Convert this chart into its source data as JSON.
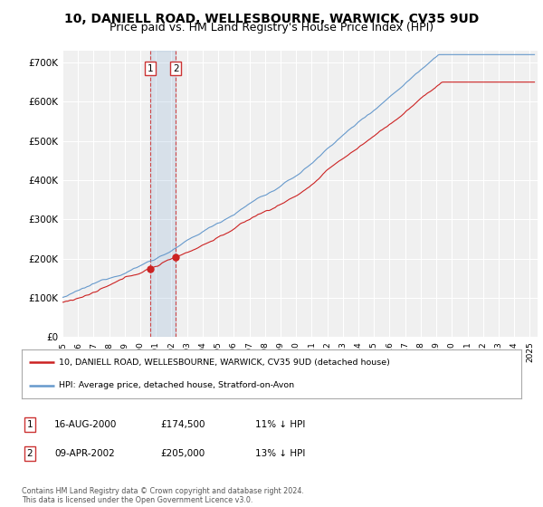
{
  "title": "10, DANIELL ROAD, WELLESBOURNE, WARWICK, CV35 9UD",
  "subtitle": "Price paid vs. HM Land Registry's House Price Index (HPI)",
  "ylabel_ticks": [
    "£0",
    "£100K",
    "£200K",
    "£300K",
    "£400K",
    "£500K",
    "£600K",
    "£700K"
  ],
  "ytick_vals": [
    0,
    100000,
    200000,
    300000,
    400000,
    500000,
    600000,
    700000
  ],
  "ylim": [
    0,
    730000
  ],
  "xlim_start": 1995.0,
  "xlim_end": 2025.5,
  "hpi_color": "#6699cc",
  "price_color": "#cc2222",
  "sale1_date": 2000.62,
  "sale1_price": 174500,
  "sale1_label": "1",
  "sale2_date": 2002.27,
  "sale2_price": 205000,
  "sale2_label": "2",
  "legend_line1": "10, DANIELL ROAD, WELLESBOURNE, WARWICK, CV35 9UD (detached house)",
  "legend_line2": "HPI: Average price, detached house, Stratford-on-Avon",
  "table_row1": [
    "1",
    "16-AUG-2000",
    "£174,500",
    "11% ↓ HPI"
  ],
  "table_row2": [
    "2",
    "09-APR-2002",
    "£205,000",
    "13% ↓ HPI"
  ],
  "footnote": "Contains HM Land Registry data © Crown copyright and database right 2024.\nThis data is licensed under the Open Government Licence v3.0.",
  "background_color": "#ffffff",
  "plot_bg_color": "#f0f0f0",
  "grid_color": "#ffffff",
  "title_fontsize": 10,
  "subtitle_fontsize": 9
}
